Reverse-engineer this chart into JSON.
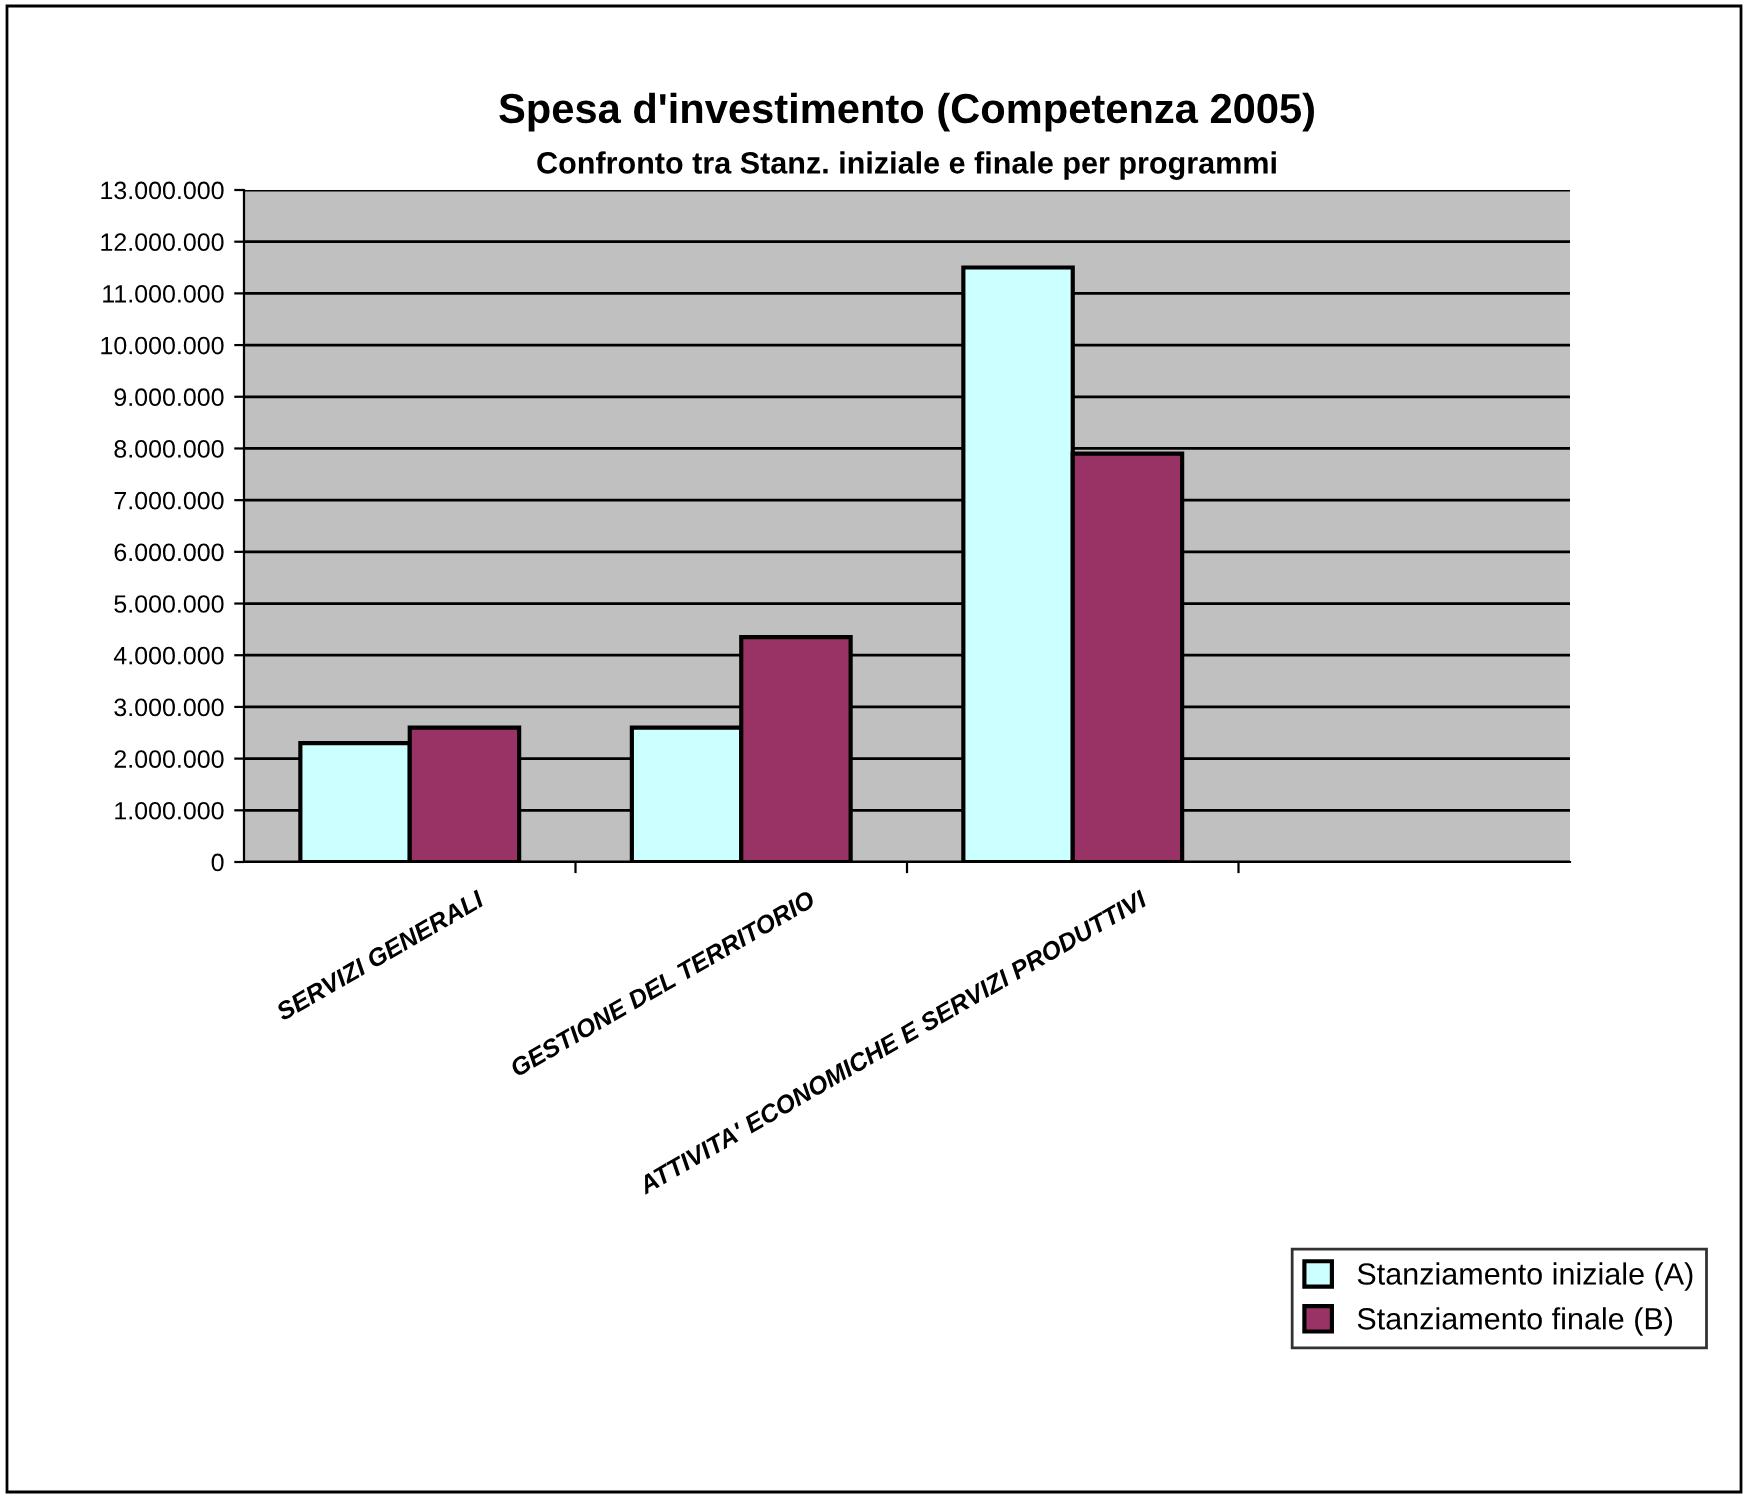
{
  "chart_data": {
    "type": "bar",
    "title": "Spesa d'investimento (Competenza 2005)",
    "subtitle": "Confronto tra Stanz. iniziale e finale per programmi",
    "categories": [
      "SERVIZI GENERALI",
      "GESTIONE DEL TERRITORIO",
      "ATTIVITA' ECONOMICHE E SERVIZI PRODUTTIVI",
      null
    ],
    "series": [
      {
        "name": "Stanziamento iniziale (A)",
        "color": "#ccffff",
        "values": [
          2300000,
          2600000,
          11500000,
          null
        ]
      },
      {
        "name": "Stanziamento finale (B)",
        "color": "#993366",
        "values": [
          2600000,
          4350000,
          7900000,
          null
        ]
      }
    ],
    "ylim": [
      0,
      13000000
    ],
    "yticks": [
      {
        "value": 0,
        "label": "0"
      },
      {
        "value": 1000000,
        "label": "1.000.000"
      },
      {
        "value": 2000000,
        "label": "2.000.000"
      },
      {
        "value": 3000000,
        "label": "3.000.000"
      },
      {
        "value": 4000000,
        "label": "4.000.000"
      },
      {
        "value": 5000000,
        "label": "5.000.000"
      },
      {
        "value": 6000000,
        "label": "6.000.000"
      },
      {
        "value": 7000000,
        "label": "7.000.000"
      },
      {
        "value": 8000000,
        "label": "8.000.000"
      },
      {
        "value": 9000000,
        "label": "9.000.000"
      },
      {
        "value": 10000000,
        "label": "10.000.000"
      },
      {
        "value": 11000000,
        "label": "11.000.000"
      },
      {
        "value": 12000000,
        "label": "12.000.000"
      },
      {
        "value": 13000000,
        "label": "13.000.000"
      }
    ],
    "grid": "y",
    "legend": "bottom right"
  }
}
